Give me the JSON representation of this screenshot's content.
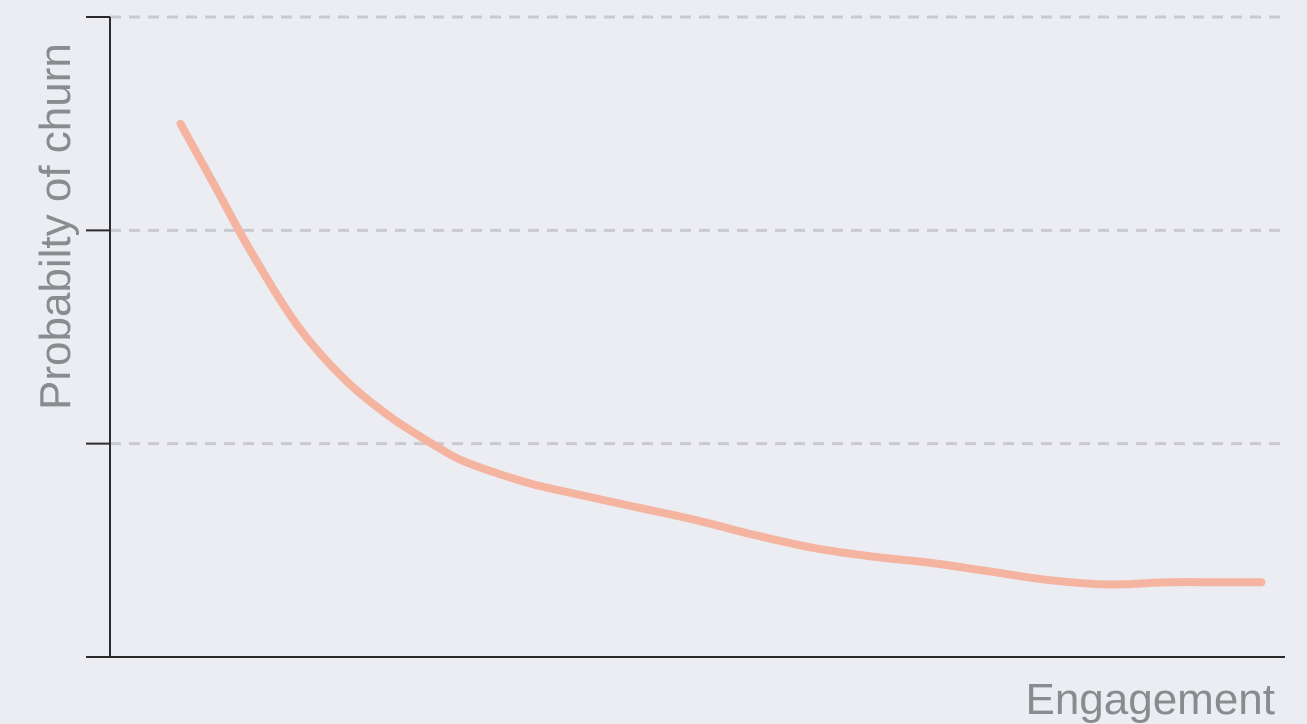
{
  "chart_data": {
    "type": "line",
    "title": "",
    "xlabel": "Engagement",
    "ylabel": "Probabilty of churn",
    "xlim": [
      0,
      1
    ],
    "ylim": [
      0,
      3
    ],
    "y_ticks": [
      0,
      1,
      2,
      3
    ],
    "grid": "horizontal dashed",
    "line_color": "#f4b4a0",
    "grid_color": "#c9cacd",
    "axis_color": "#2b2b2b",
    "series": [
      {
        "x": [
          0.06,
          0.09,
          0.12,
          0.16,
          0.2,
          0.24,
          0.28,
          0.3,
          0.33,
          0.36,
          0.4,
          0.45,
          0.5,
          0.55,
          0.6,
          0.65,
          0.7,
          0.75,
          0.8,
          0.85,
          0.9,
          0.95,
          0.98
        ],
        "y": [
          2.5,
          2.2,
          1.9,
          1.55,
          1.3,
          1.12,
          0.98,
          0.92,
          0.86,
          0.81,
          0.76,
          0.7,
          0.64,
          0.57,
          0.51,
          0.47,
          0.44,
          0.4,
          0.36,
          0.34,
          0.35,
          0.35,
          0.35
        ]
      }
    ]
  }
}
